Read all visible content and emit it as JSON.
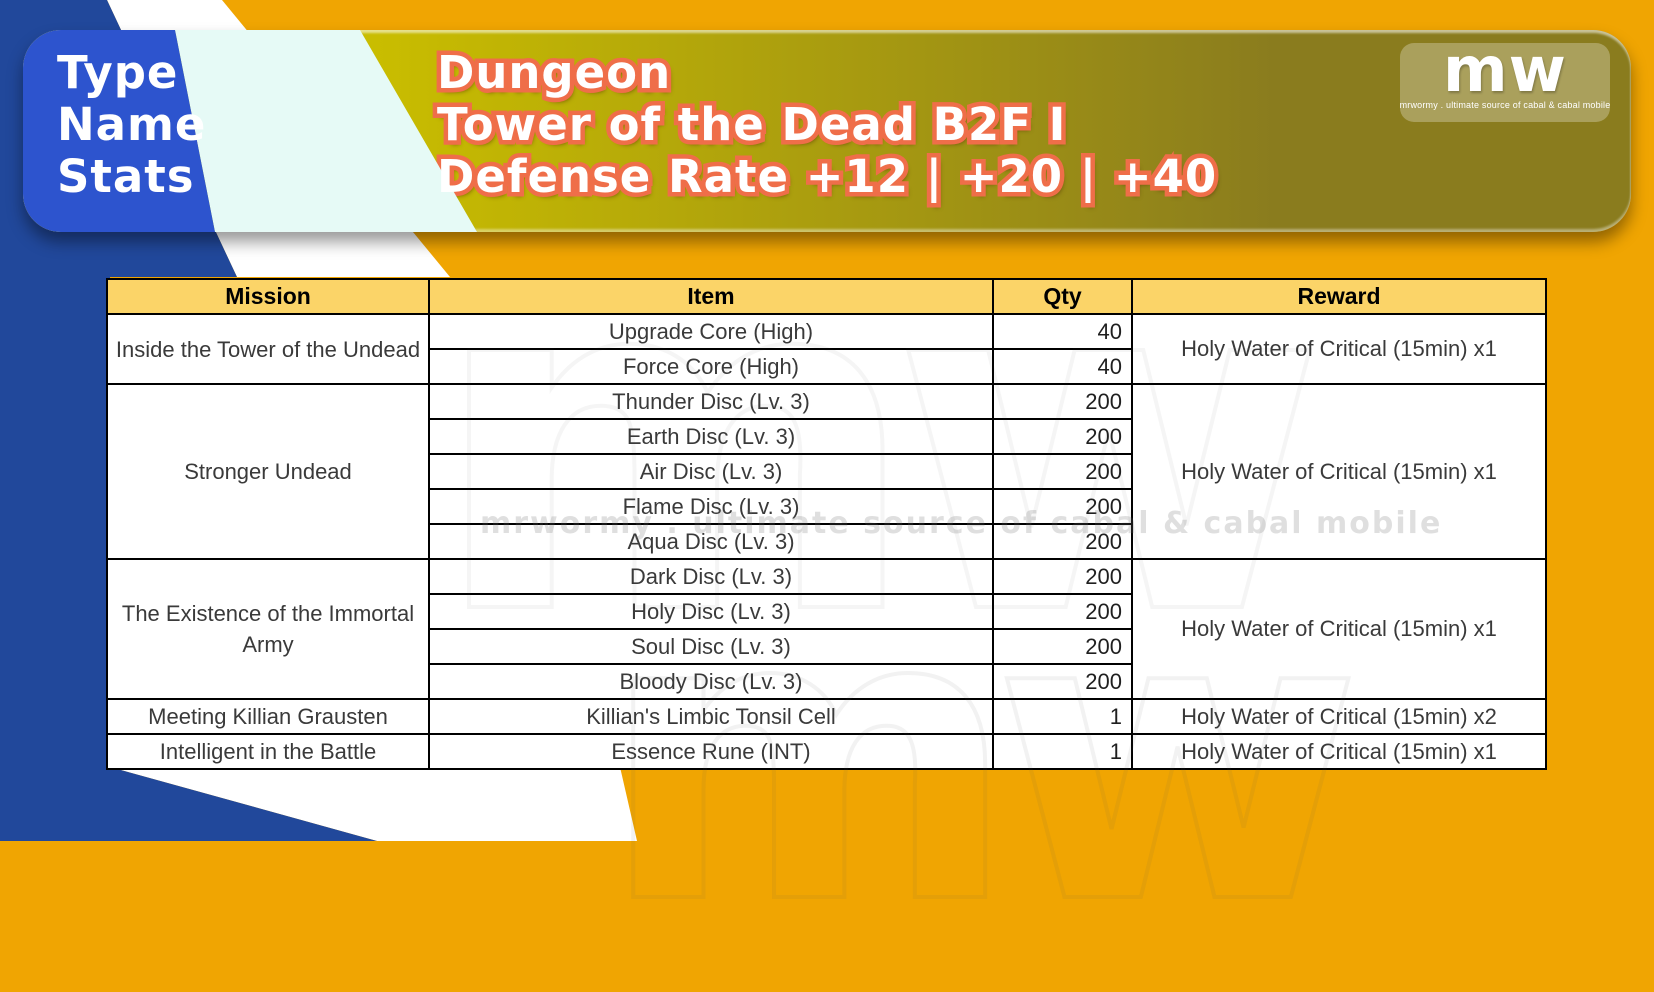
{
  "banner": {
    "labels": [
      "Type",
      "Name",
      "Stats"
    ],
    "type_value": "Dungeon",
    "name_value": "Tower of the Dead B2F I",
    "stats_value": "Defense Rate +12 | +20 | +40",
    "logo": {
      "text": "mw",
      "caption": "mrwormy . ultimate source of cabal & cabal mobile"
    }
  },
  "watermark": {
    "big": "mw",
    "line": "mrwormy . ultimate source of cabal & cabal mobile"
  },
  "table": {
    "headers": [
      "Mission",
      "Item",
      "Qty",
      "Reward"
    ],
    "groups": [
      {
        "mission": "Inside the Tower of the Undead",
        "reward": "Holy Water of Critical (15min) x1",
        "items": [
          {
            "item": "Upgrade Core (High)",
            "qty": "40"
          },
          {
            "item": "Force Core (High)",
            "qty": "40"
          }
        ]
      },
      {
        "mission": "Stronger Undead",
        "reward": "Holy Water of Critical (15min) x1",
        "items": [
          {
            "item": "Thunder Disc (Lv. 3)",
            "qty": "200"
          },
          {
            "item": "Earth Disc (Lv. 3)",
            "qty": "200"
          },
          {
            "item": "Air Disc (Lv. 3)",
            "qty": "200"
          },
          {
            "item": "Flame Disc (Lv. 3)",
            "qty": "200"
          },
          {
            "item": "Aqua Disc (Lv. 3)",
            "qty": "200"
          }
        ]
      },
      {
        "mission": "The Existence of the Immortal Army",
        "reward": "Holy Water of Critical (15min) x1",
        "items": [
          {
            "item": "Dark Disc (Lv. 3)",
            "qty": "200"
          },
          {
            "item": "Holy Disc (Lv. 3)",
            "qty": "200"
          },
          {
            "item": "Soul Disc (Lv. 3)",
            "qty": "200"
          },
          {
            "item": "Bloody Disc (Lv. 3)",
            "qty": "200"
          }
        ]
      },
      {
        "mission": "Meeting Killian Grausten",
        "reward": "Holy Water of Critical (15min) x2",
        "items": [
          {
            "item": "Killian's Limbic Tonsil Cell",
            "qty": "1"
          }
        ]
      },
      {
        "mission": "Intelligent in the Battle",
        "reward": "Holy Water of Critical (15min) x1",
        "items": [
          {
            "item": "Essence Rune (INT)",
            "qty": "1"
          }
        ]
      }
    ]
  },
  "colors": {
    "page_blue": "#21489B",
    "page_white": "#FFFFFF",
    "page_gold": "#F0A502",
    "banner_blue": "#2D54CE",
    "banner_pale": "#E6FAF6",
    "banner_olive_light": "#C9BD00",
    "banner_olive_dark": "#8A7C1E",
    "text_outline_orange": "#EF6E49",
    "banner_text_fill": "#FFFFFF",
    "header_gold": "#FBD468",
    "table_border": "#000000",
    "body_text": "#3A3A3A",
    "logo_text": "#FFFFFF"
  }
}
